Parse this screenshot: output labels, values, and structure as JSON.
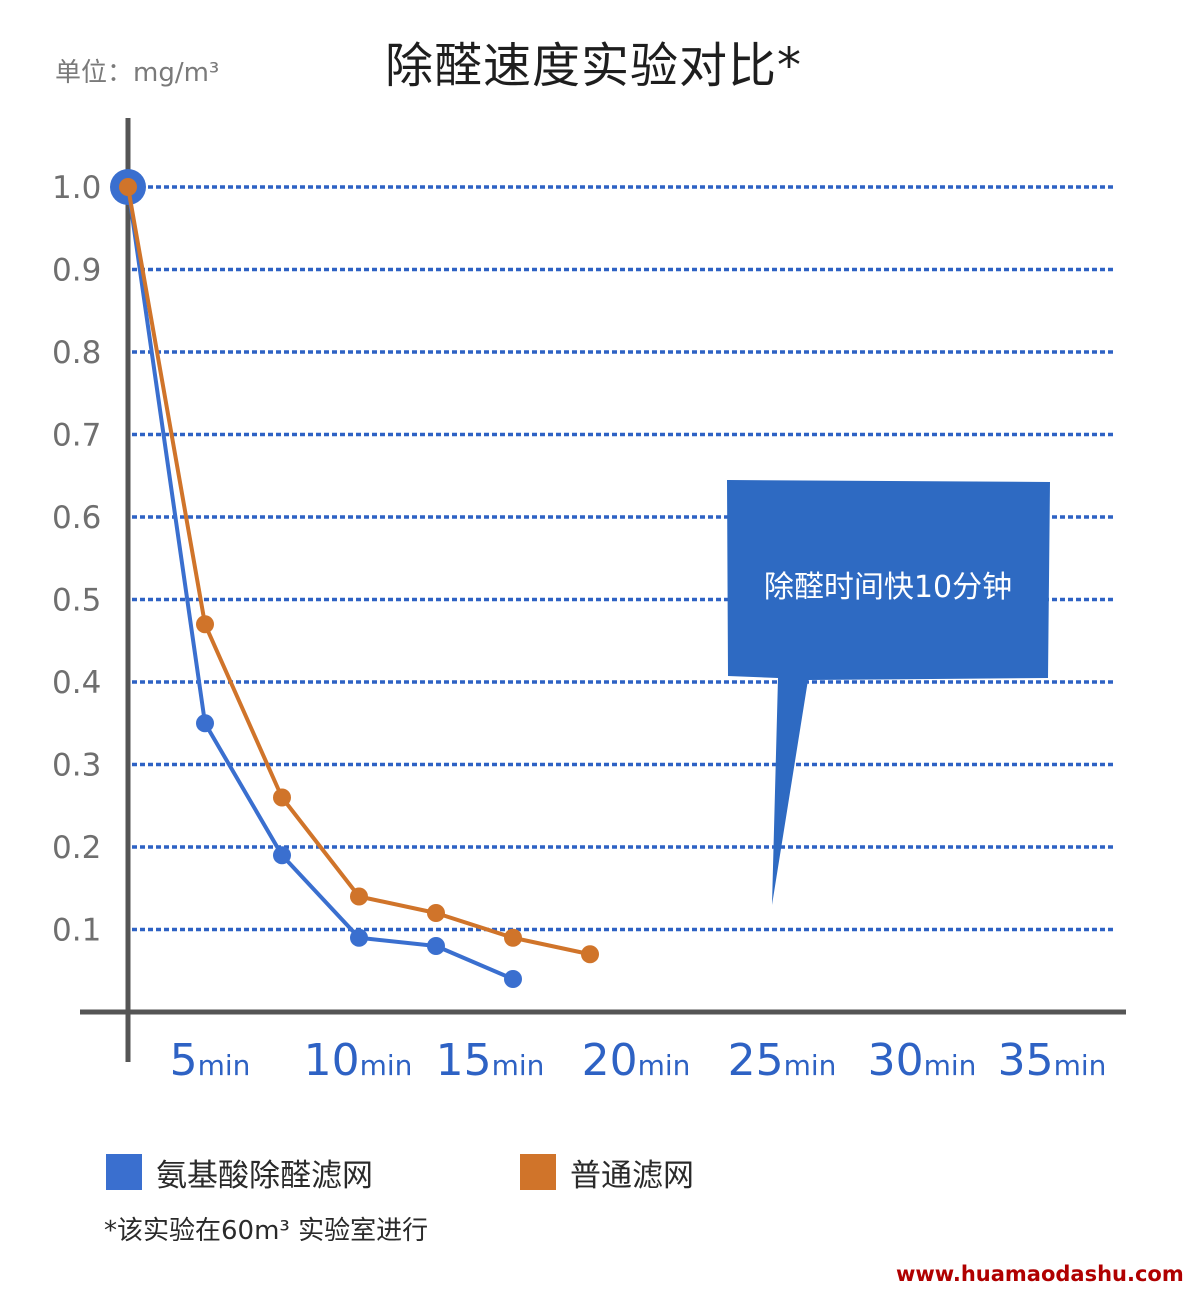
{
  "chart_data": {
    "type": "line",
    "title": "除醛速度实验对比*",
    "unit_label": "单位：mg/m³",
    "y_ticks": [
      "1.0",
      "0.9",
      "0.8",
      "0.7",
      "0.6",
      "0.5",
      "0.4",
      "0.3",
      "0.2",
      "0.1"
    ],
    "x_ticks": [
      {
        "num": "5",
        "unit": "min"
      },
      {
        "num": "10",
        "unit": "min"
      },
      {
        "num": "15",
        "unit": "min"
      },
      {
        "num": "20",
        "unit": "min"
      },
      {
        "num": "25",
        "unit": "min"
      },
      {
        "num": "30",
        "unit": "min"
      },
      {
        "num": "35",
        "unit": "min"
      }
    ],
    "ylim": [
      0,
      1.0
    ],
    "grid": true,
    "series": [
      {
        "name": "氨基酸除醛滤网",
        "color": "#3a6fcf",
        "x": [
          0,
          5,
          10,
          15,
          20,
          25
        ],
        "y": [
          1.0,
          0.35,
          0.19,
          0.09,
          0.08,
          0.04
        ]
      },
      {
        "name": "普通滤网",
        "color": "#d0742a",
        "x": [
          0,
          5,
          10,
          15,
          20,
          25,
          30
        ],
        "y": [
          1.0,
          0.47,
          0.26,
          0.14,
          0.12,
          0.09,
          0.07
        ]
      }
    ],
    "annotation": "除醛时间快10分钟"
  },
  "footnote": "*该实验在60m³ 实验室进行",
  "watermark": "www.huamaodashu.com",
  "colors": {
    "grid": "#2e62c4",
    "axis": "#555555",
    "callout": "#2e6ac2",
    "tick_label": "#2e62c4"
  }
}
